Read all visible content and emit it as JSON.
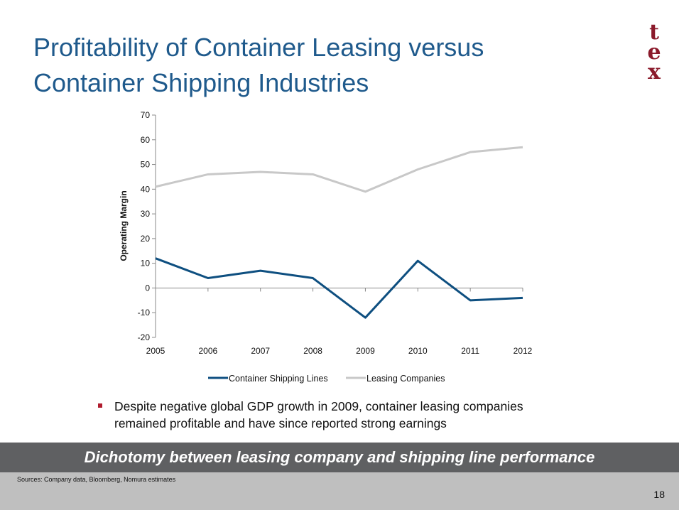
{
  "title": "Profitability of Container Leasing versus Container Shipping Industries",
  "logo_text": "tex",
  "colors": {
    "title": "#1f5a8c",
    "logo": "#8b1a2b",
    "shipping": "#0e4f80",
    "leasing": "#c8c8c8",
    "banner": "#5f6062",
    "footer": "#bfbfbf"
  },
  "chart_data": {
    "type": "line",
    "title": "",
    "xlabel": "",
    "ylabel": "Operating Margin",
    "ylim": [
      -20,
      70
    ],
    "yticks": [
      "70",
      "60",
      "50",
      "40",
      "30",
      "20",
      "10",
      "0",
      "-10",
      "-20"
    ],
    "categories": [
      "2005",
      "2006",
      "2007",
      "2008",
      "2009",
      "2010",
      "2011",
      "2012"
    ],
    "series": [
      {
        "name": "Container Shipping Lines",
        "color": "#0e4f80",
        "values": [
          12,
          4,
          7,
          4,
          -12,
          11,
          -5,
          -4
        ]
      },
      {
        "name": "Leasing Companies",
        "color": "#c8c8c8",
        "values": [
          41,
          46,
          47,
          46,
          39,
          48,
          55,
          57
        ]
      }
    ],
    "legend": "bottom",
    "grid": false
  },
  "bullet": "Despite negative global GDP growth in 2009, container leasing companies remained profitable and have since reported strong earnings",
  "banner": "Dichotomy between leasing company and shipping line performance",
  "sources": "Sources:  Company data, Bloomberg, Nomura estimates",
  "page_number": "18"
}
